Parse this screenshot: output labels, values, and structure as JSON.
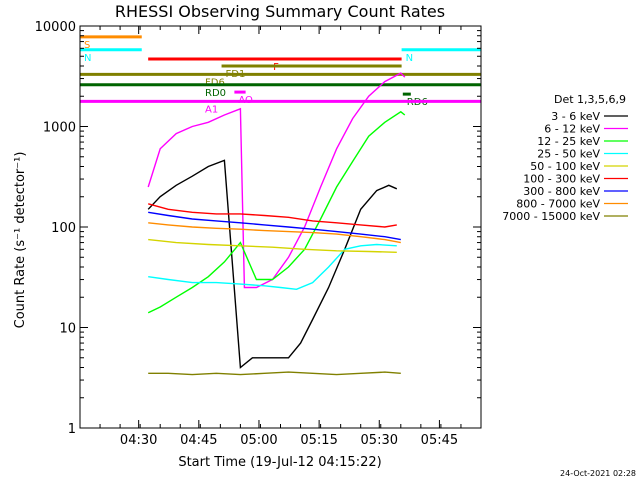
{
  "chart_data": {
    "type": "line",
    "title": "RHESSI Observing Summary Count Rates",
    "xlabel": "Start Time (19-Jul-12 04:15:22)",
    "ylabel": "Count Rate (s⁻¹ detector⁻¹)",
    "y_scale": "log",
    "ylim": [
      1,
      10000
    ],
    "xlim_minutes": [
      0,
      100
    ],
    "x_ticks": [
      "04:30",
      "04:45",
      "05:00",
      "05:15",
      "05:30",
      "05:45"
    ],
    "x_tick_minutes": [
      14.63,
      29.63,
      44.63,
      59.63,
      74.63,
      89.63
    ],
    "y_ticks": [
      "1",
      "10",
      "100",
      "1000",
      "10000"
    ],
    "y_tick_values": [
      1,
      10,
      100,
      1000,
      10000
    ],
    "legend_title": "Det 1,3,5,6,9",
    "legend_position": "right",
    "series": [
      {
        "name": "3 - 6 keV",
        "color": "#000000",
        "points": [
          [
            17,
            150
          ],
          [
            20,
            200
          ],
          [
            24,
            260
          ],
          [
            28,
            320
          ],
          [
            32,
            400
          ],
          [
            36,
            460
          ],
          [
            40,
            4
          ],
          [
            43,
            5
          ],
          [
            48,
            5
          ],
          [
            52,
            5
          ],
          [
            55,
            7
          ],
          [
            58,
            12
          ],
          [
            62,
            25
          ],
          [
            66,
            60
          ],
          [
            70,
            150
          ],
          [
            74,
            230
          ],
          [
            77,
            260
          ],
          [
            79,
            240
          ]
        ]
      },
      {
        "name": "6 - 12 keV",
        "color": "#ff00ff",
        "points": [
          [
            17,
            250
          ],
          [
            20,
            600
          ],
          [
            24,
            850
          ],
          [
            28,
            1000
          ],
          [
            32,
            1100
          ],
          [
            36,
            1300
          ],
          [
            40,
            1500
          ],
          [
            41,
            25
          ],
          [
            44,
            25
          ],
          [
            48,
            30
          ],
          [
            52,
            50
          ],
          [
            56,
            100
          ],
          [
            60,
            250
          ],
          [
            64,
            600
          ],
          [
            68,
            1200
          ],
          [
            72,
            2000
          ],
          [
            76,
            2800
          ],
          [
            80,
            3400
          ],
          [
            81,
            3100
          ]
        ]
      },
      {
        "name": "12 - 25 keV",
        "color": "#00ff00",
        "points": [
          [
            17,
            14
          ],
          [
            20,
            16
          ],
          [
            24,
            20
          ],
          [
            28,
            25
          ],
          [
            32,
            32
          ],
          [
            36,
            45
          ],
          [
            40,
            70
          ],
          [
            44,
            30
          ],
          [
            48,
            30
          ],
          [
            52,
            40
          ],
          [
            56,
            60
          ],
          [
            60,
            120
          ],
          [
            64,
            250
          ],
          [
            68,
            450
          ],
          [
            72,
            800
          ],
          [
            76,
            1100
          ],
          [
            80,
            1400
          ],
          [
            81,
            1300
          ]
        ]
      },
      {
        "name": "25 - 50 keV",
        "color": "#00ffff",
        "points": [
          [
            17,
            32
          ],
          [
            22,
            30
          ],
          [
            28,
            28
          ],
          [
            34,
            28
          ],
          [
            40,
            27
          ],
          [
            46,
            26
          ],
          [
            50,
            25
          ],
          [
            54,
            24
          ],
          [
            58,
            28
          ],
          [
            62,
            40
          ],
          [
            66,
            60
          ],
          [
            70,
            65
          ],
          [
            74,
            67
          ],
          [
            79,
            65
          ]
        ]
      },
      {
        "name": "50 - 100 keV",
        "color": "#d4d400",
        "points": [
          [
            17,
            75
          ],
          [
            24,
            70
          ],
          [
            32,
            67
          ],
          [
            40,
            65
          ],
          [
            48,
            63
          ],
          [
            56,
            60
          ],
          [
            64,
            58
          ],
          [
            72,
            57
          ],
          [
            79,
            56
          ]
        ]
      },
      {
        "name": "100 - 300 keV",
        "color": "#ff0000",
        "points": [
          [
            17,
            170
          ],
          [
            22,
            150
          ],
          [
            28,
            140
          ],
          [
            34,
            135
          ],
          [
            40,
            135
          ],
          [
            46,
            130
          ],
          [
            52,
            125
          ],
          [
            58,
            115
          ],
          [
            64,
            110
          ],
          [
            70,
            105
          ],
          [
            76,
            100
          ],
          [
            79,
            105
          ]
        ]
      },
      {
        "name": "300 - 800 keV",
        "color": "#0000ff",
        "points": [
          [
            17,
            140
          ],
          [
            22,
            130
          ],
          [
            28,
            120
          ],
          [
            34,
            115
          ],
          [
            40,
            110
          ],
          [
            46,
            105
          ],
          [
            52,
            100
          ],
          [
            58,
            95
          ],
          [
            64,
            90
          ],
          [
            70,
            85
          ],
          [
            76,
            80
          ],
          [
            80,
            75
          ]
        ]
      },
      {
        "name": "800 - 7000 keV",
        "color": "#ff8c00",
        "points": [
          [
            17,
            110
          ],
          [
            22,
            105
          ],
          [
            28,
            100
          ],
          [
            34,
            97
          ],
          [
            40,
            95
          ],
          [
            46,
            92
          ],
          [
            52,
            90
          ],
          [
            58,
            88
          ],
          [
            64,
            85
          ],
          [
            70,
            80
          ],
          [
            76,
            75
          ],
          [
            80,
            70
          ]
        ]
      },
      {
        "name": "7000 - 15000 keV",
        "color": "#808000",
        "points": [
          [
            17,
            3.5
          ],
          [
            22,
            3.5
          ],
          [
            28,
            3.4
          ],
          [
            34,
            3.5
          ],
          [
            40,
            3.4
          ],
          [
            46,
            3.5
          ],
          [
            52,
            3.6
          ],
          [
            58,
            3.5
          ],
          [
            64,
            3.4
          ],
          [
            70,
            3.5
          ],
          [
            76,
            3.6
          ],
          [
            80,
            3.5
          ]
        ]
      }
    ],
    "flag_bands": [
      {
        "label": "S",
        "color": "#ff8c00",
        "value": 7800,
        "start": 0,
        "end": 15.4
      },
      {
        "label": "N",
        "color": "#00ffff",
        "value": 5800,
        "start": 0,
        "end": 15.4
      },
      {
        "label": "N",
        "color": "#00ffff",
        "value": 5800,
        "start": 80.2,
        "end": 100
      },
      {
        "label": "F",
        "color": "#ff0000",
        "value": 4700,
        "start": 17,
        "end": 80.2
      },
      {
        "label": "FD1",
        "color": "#808000",
        "value": 4000,
        "start": 35.3,
        "end": 80.2
      },
      {
        "label": "FD6",
        "color": "#808000",
        "value": 3300,
        "start": 0,
        "end": 100
      },
      {
        "label": "RD0",
        "color": "#006400",
        "value": 2600,
        "start": 0,
        "end": 100
      },
      {
        "label": "RD6",
        "color": "#006400",
        "value": 2100,
        "start": 80.5,
        "end": 82.5
      },
      {
        "label": "AO",
        "color": "#ff00ff",
        "value": 2200,
        "start": 38.5,
        "end": 41.3
      },
      {
        "label": "A1",
        "color": "#ff00ff",
        "value": 1780,
        "start": 0,
        "end": 100
      }
    ]
  },
  "footer": {
    "timestamp": "24-Oct-2021 02:28"
  }
}
